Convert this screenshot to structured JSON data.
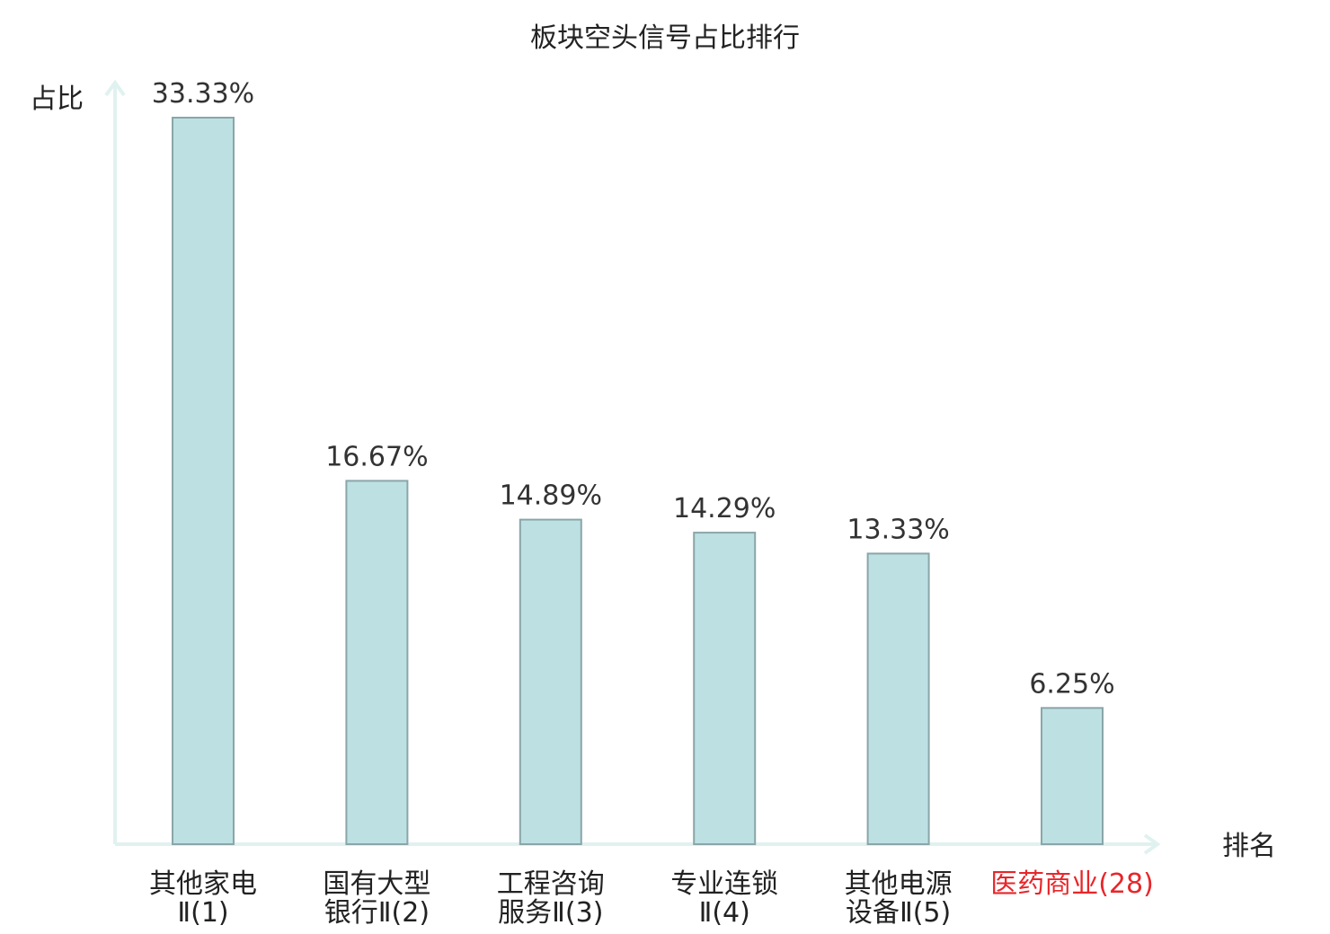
{
  "chart_data": {
    "type": "bar",
    "title": "板块空头信号占比排行",
    "ylabel": "占比",
    "xlabel": "排名",
    "ylim": [
      0,
      33.33
    ],
    "grid": false,
    "colors": {
      "bar_fill": "#bde0e3",
      "bar_stroke": "#8aa6a8",
      "axis": "#e0f2ef",
      "highlight_text": "#e8262a"
    },
    "categories": [
      {
        "lines": [
          "其他家电",
          "Ⅱ(1)"
        ],
        "highlight": false
      },
      {
        "lines": [
          "国有大型",
          "银行Ⅱ(2)"
        ],
        "highlight": false
      },
      {
        "lines": [
          "工程咨询",
          "服务Ⅱ(3)"
        ],
        "highlight": false
      },
      {
        "lines": [
          "专业连锁",
          "Ⅱ(4)"
        ],
        "highlight": false
      },
      {
        "lines": [
          "其他电源",
          "设备Ⅱ(5)"
        ],
        "highlight": false
      },
      {
        "lines": [
          "医药商业(28)"
        ],
        "highlight": true
      }
    ],
    "values": [
      33.33,
      16.67,
      14.89,
      14.29,
      13.33,
      6.25
    ],
    "value_labels": [
      "33.33%",
      "16.67%",
      "14.89%",
      "14.29%",
      "13.33%",
      "6.25%"
    ]
  }
}
